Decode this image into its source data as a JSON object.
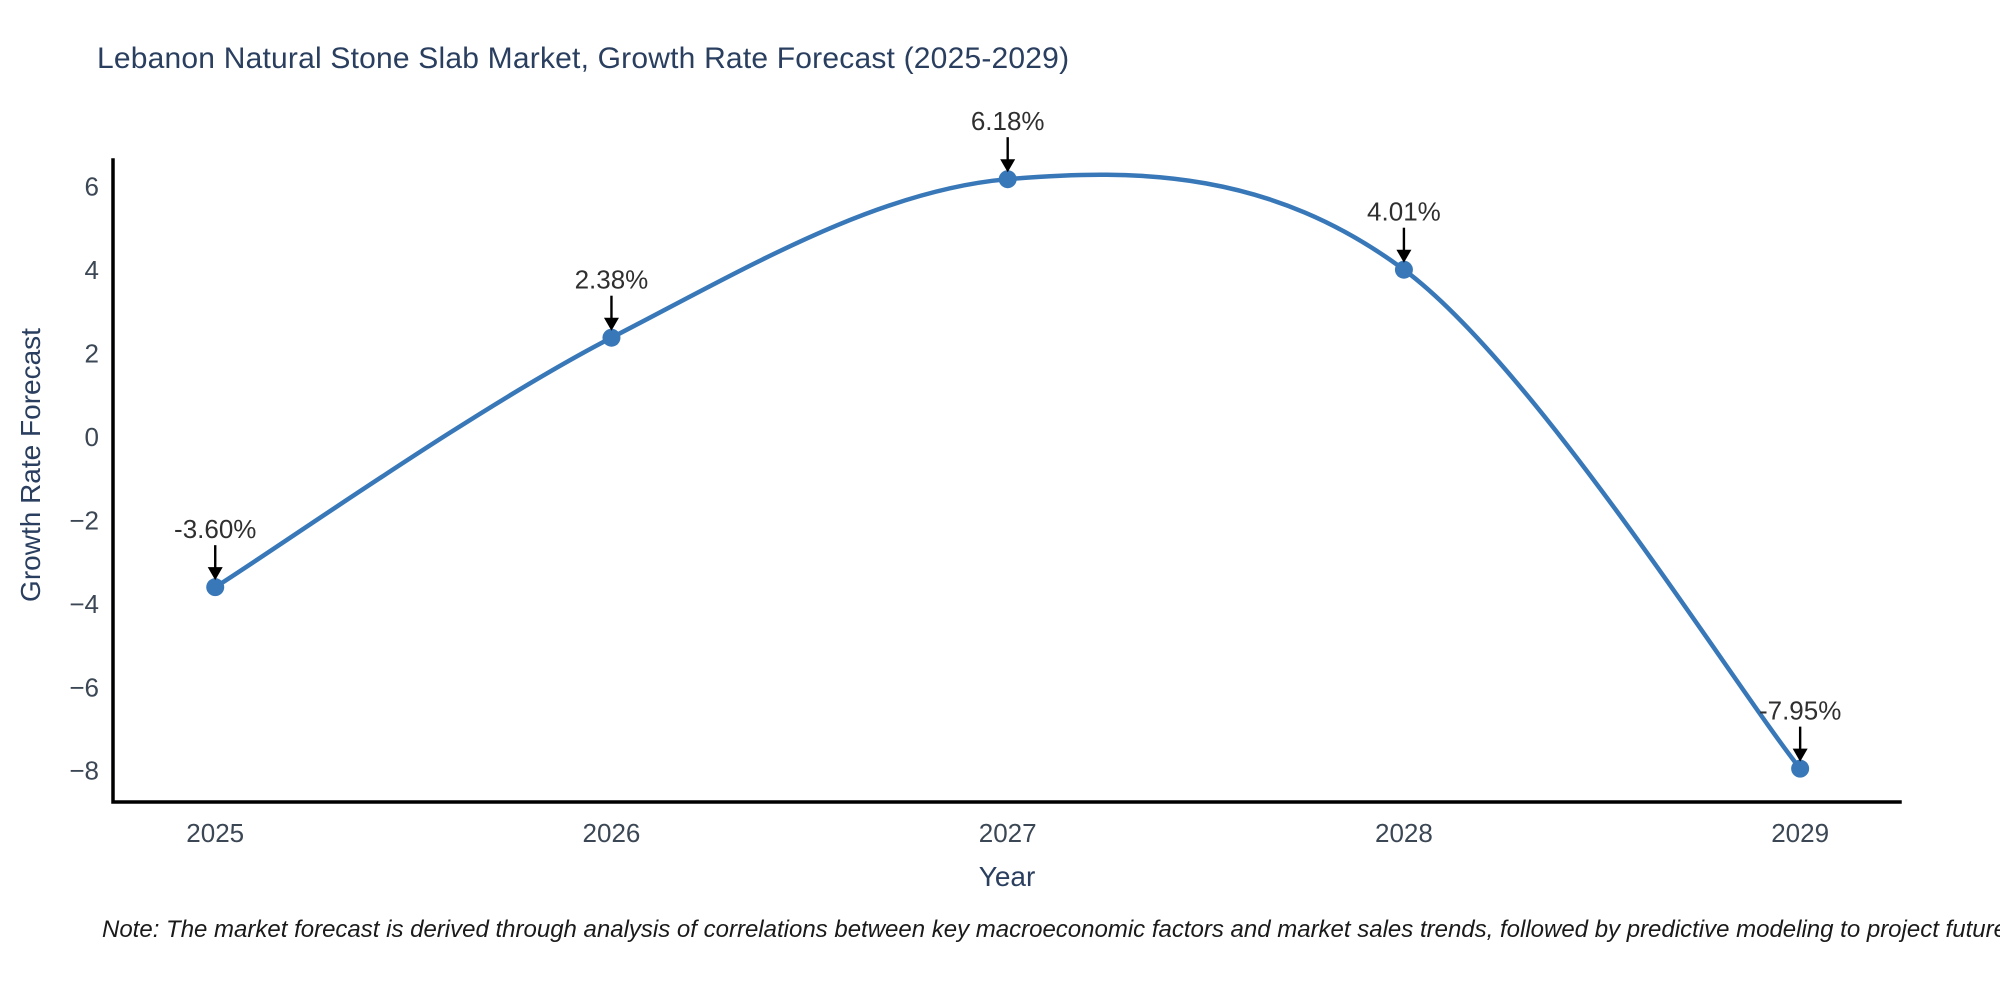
{
  "footer": {
    "note": "Note: The market forecast is derived through analysis of correlations between key macroeconomic factors and market sales trends, followed by predictive modeling to project future sales"
  },
  "chart_data": {
    "type": "line",
    "line_shape": "spline",
    "title": "Lebanon Natural Stone Slab Market, Growth Rate Forecast (2025-2029)",
    "xlabel": "Year",
    "ylabel": "Growth Rate Forecast",
    "x": [
      2025,
      2026,
      2027,
      2028,
      2029
    ],
    "y": [
      -3.6,
      2.38,
      6.18,
      4.01,
      -7.95
    ],
    "point_labels": [
      "-3.60%",
      "2.38%",
      "6.18%",
      "4.01%",
      "-7.95%"
    ],
    "xticks": [
      2025,
      2026,
      2027,
      2028,
      2029
    ],
    "xticklabels": [
      "2025",
      "2026",
      "2027",
      "2028",
      "2029"
    ],
    "yticks": [
      6,
      4,
      2,
      0,
      -2,
      -4,
      -6,
      -8
    ],
    "yticklabels": [
      "6",
      "4",
      "2",
      "0",
      "−2",
      "−4",
      "−6",
      "−8"
    ],
    "xlim": [
      2024.742,
      2029.252
    ],
    "ylim": [
      -8.75,
      6.64
    ],
    "grid": false,
    "legend": false,
    "colors": {
      "line": "#3878b8",
      "marker": "#3878b8",
      "axis": "#000000",
      "tick_label": "#3b4754",
      "axis_title": "#2a3f5f",
      "title": "#2a3f5f",
      "annotation_text": "#2f2f2f",
      "annotation_arrow": "#000000"
    }
  }
}
